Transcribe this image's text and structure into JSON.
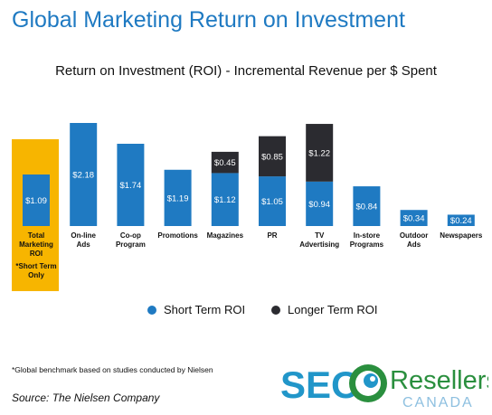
{
  "header": {
    "title": "Global Marketing Return on Investment"
  },
  "legend": {
    "short": "Short Term ROI",
    "long": "Longer Term ROI"
  },
  "footnote": "*Global benchmark based on studies conducted by Nielsen",
  "source": "Source: The Nielsen Company",
  "logo": {
    "seo": "SEO",
    "resellers": "Resellers",
    "country": "CANADA"
  },
  "colors": {
    "short": "#1f7ac2",
    "long": "#2b2b30",
    "highlight": "#f7b500",
    "title": "#1f7ac2"
  },
  "chart_data": {
    "type": "bar",
    "stacked": true,
    "title": "Return on Investment (ROI) - Incremental Revenue per $ Spent",
    "categories": [
      [
        "Total",
        "Marketing",
        "ROI",
        "*Short Term",
        "Only"
      ],
      [
        "On-line",
        "Ads"
      ],
      [
        "Co-op",
        "Program"
      ],
      [
        "Promotions"
      ],
      [
        "Magazines"
      ],
      [
        "PR"
      ],
      [
        "TV",
        "Advertising"
      ],
      [
        "In-store",
        "Programs"
      ],
      [
        "Outdoor",
        "Ads"
      ],
      [
        "Newspapers"
      ]
    ],
    "series": [
      {
        "name": "Short Term ROI",
        "values": [
          1.09,
          2.18,
          1.74,
          1.19,
          1.12,
          1.05,
          0.94,
          0.84,
          0.34,
          0.24
        ],
        "labels": [
          "$1.09",
          "$2.18",
          "$1.74",
          "$1.19",
          "$1.12",
          "$1.05",
          "$0.94",
          "$0.84",
          "$0.34",
          "$0.24"
        ]
      },
      {
        "name": "Longer Term ROI",
        "values": [
          0,
          0,
          0,
          0,
          0.45,
          0.85,
          1.22,
          0,
          0,
          0
        ],
        "labels": [
          "",
          "",
          "",
          "",
          "$0.45",
          "$0.85",
          "$1.22",
          "",
          "",
          ""
        ]
      }
    ],
    "highlight_category": 0,
    "ylim": [
      0,
      2.2
    ],
    "grid": false,
    "legend_position": "bottom"
  }
}
